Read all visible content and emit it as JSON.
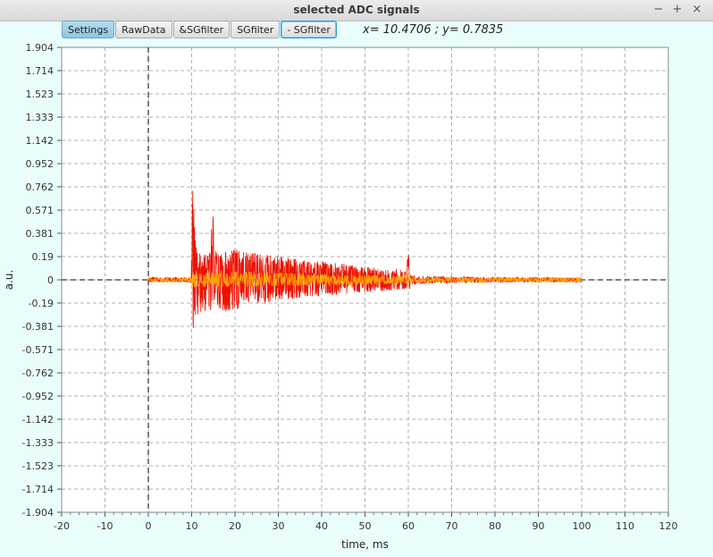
{
  "window": {
    "title": "selected ADC signals",
    "minimize_glyph": "−",
    "maximize_glyph": "+",
    "close_glyph": "×"
  },
  "toolbar": {
    "buttons": [
      "Settings",
      "RawData",
      "&SGfilter",
      "SGfilter",
      "- SGfilter"
    ]
  },
  "cursor_readout": "x= 10.4706 ; y= 0.7835",
  "chart_data": {
    "type": "line",
    "xlabel": "time, ms",
    "ylabel": "a.u.",
    "xlim": [
      -20,
      120
    ],
    "ylim": [
      -1.904,
      1.904
    ],
    "x_ticks": [
      "-20",
      "-10",
      "0",
      "10",
      "20",
      "30",
      "40",
      "50",
      "60",
      "70",
      "80",
      "90",
      "100",
      "110",
      "120"
    ],
    "y_ticks": [
      "1.904",
      "1.714",
      "1.523",
      "1.333",
      "1.142",
      "0.952",
      "0.762",
      "0.571",
      "0.381",
      "0.19",
      "0",
      "-0.19",
      "-0.381",
      "-0.571",
      "-0.762",
      "-0.952",
      "-1.142",
      "-1.333",
      "-1.523",
      "-1.714",
      "-1.904"
    ],
    "grid": true,
    "reference_lines": {
      "x": 0,
      "y": 0,
      "style": "dashed black"
    },
    "series": [
      {
        "color": "#ee1100",
        "envelope": {
          "x": [
            0,
            9.9,
            10.2,
            10.5,
            11,
            12,
            14,
            15,
            15.5,
            17,
            20,
            25,
            30,
            35,
            40,
            45,
            50,
            55,
            59.5,
            60,
            60.5,
            65,
            70,
            80,
            90,
            100
          ],
          "upper": [
            0.02,
            0.02,
            0.78,
            0.7,
            0.3,
            0.22,
            0.2,
            0.6,
            0.25,
            0.22,
            0.26,
            0.22,
            0.2,
            0.17,
            0.15,
            0.13,
            0.11,
            0.09,
            0.08,
            0.27,
            0.04,
            0.03,
            0.025,
            0.02,
            0.02,
            0.02
          ],
          "lower": [
            -0.02,
            -0.02,
            -0.45,
            -0.46,
            -0.35,
            -0.28,
            -0.26,
            -0.24,
            -0.22,
            -0.26,
            -0.25,
            -0.2,
            -0.17,
            -0.15,
            -0.13,
            -0.12,
            -0.1,
            -0.09,
            -0.08,
            -0.2,
            -0.04,
            -0.03,
            -0.025,
            -0.02,
            -0.02,
            -0.02
          ]
        }
      },
      {
        "color": "#ffa500",
        "envelope": {
          "x": [
            0,
            9.9,
            10.2,
            12,
            20,
            30,
            40,
            50,
            59.5,
            60,
            60.5,
            70,
            80,
            90,
            100
          ],
          "upper": [
            0.015,
            0.015,
            0.06,
            0.06,
            0.07,
            0.06,
            0.05,
            0.04,
            0.035,
            0.06,
            0.02,
            0.02,
            0.02,
            0.02,
            0.02
          ],
          "lower": [
            -0.015,
            -0.015,
            -0.06,
            -0.06,
            -0.06,
            -0.05,
            -0.05,
            -0.04,
            -0.035,
            -0.05,
            -0.02,
            -0.02,
            -0.02,
            -0.02,
            -0.02
          ]
        }
      }
    ]
  }
}
